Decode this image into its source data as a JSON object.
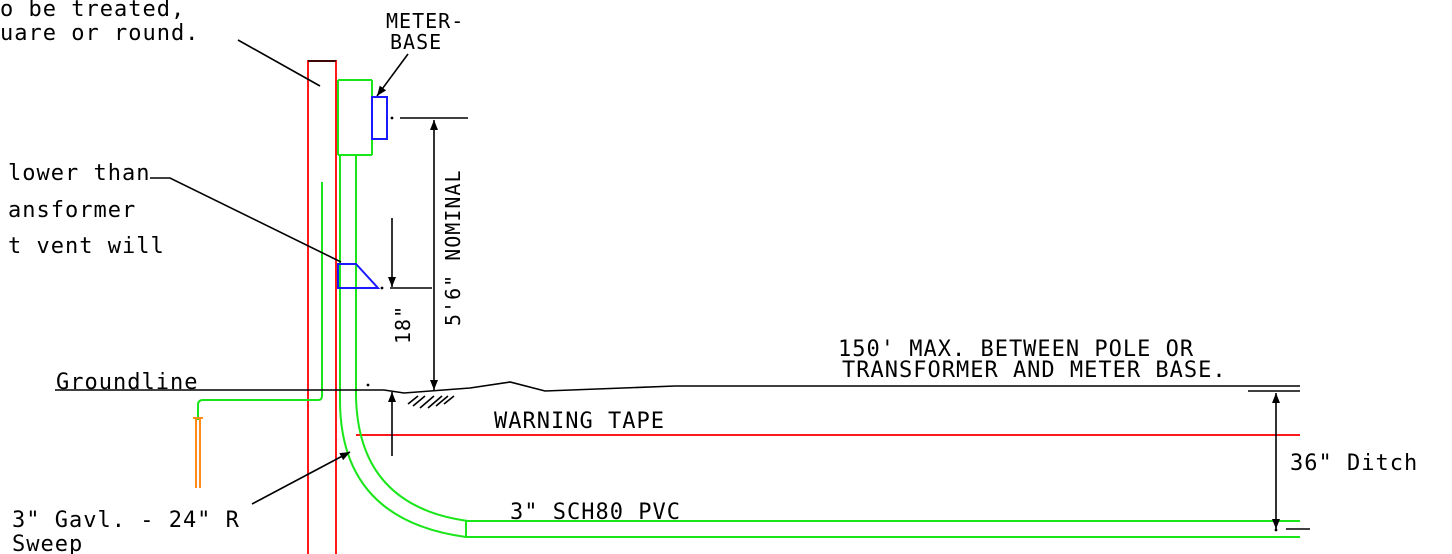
{
  "notes": {
    "pole_line1": "o be treated,",
    "pole_line2": "uare or round.",
    "vent_line1": "lower than",
    "vent_line2": "ansformer",
    "vent_line3": "t vent will"
  },
  "labels": {
    "meter_base_line1": "METER-",
    "meter_base_line2": "BASE",
    "nominal": "5'6\" NOMINAL",
    "eighteen": "18\"",
    "groundline": "Groundline",
    "max_line1": "150' MAX. BETWEEN POLE OR",
    "max_line2": "TRANSFORMER AND METER BASE.",
    "warning_tape": "WARNING TAPE",
    "ditch": "36\" Ditch",
    "pvc": "3\" SCH80 PVC",
    "sweep_line1": "3\" Gavl. - 24\" R",
    "sweep_line2": "Sweep"
  },
  "colors": {
    "pole": "#ff1a1a",
    "conduit": "#19e619",
    "meter": "#1a1aff",
    "ground_rod": "#ff8c1a",
    "linework": "#000000"
  }
}
